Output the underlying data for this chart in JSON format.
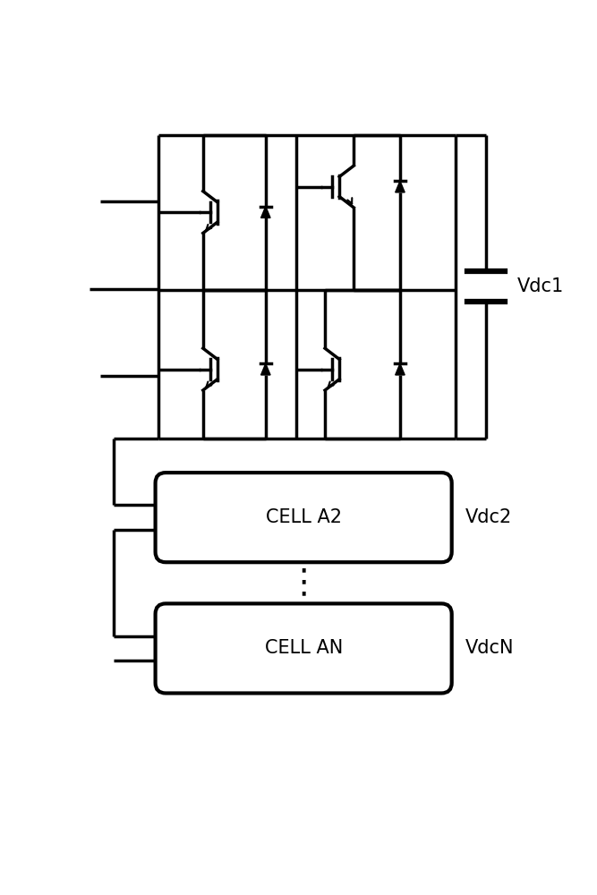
{
  "background_color": "#ffffff",
  "line_color": "#000000",
  "lw": 2.5,
  "fig_width": 6.67,
  "fig_height": 10.0,
  "cell_a2_label": "CELL A2",
  "cell_an_label": "CELL AN",
  "vdc1_label": "Vdc1",
  "vdc2_label": "Vdc2",
  "vdcn_label": "VdcN",
  "font_size": 15,
  "igbt_scale": 0.38,
  "diode_scale": 0.22
}
